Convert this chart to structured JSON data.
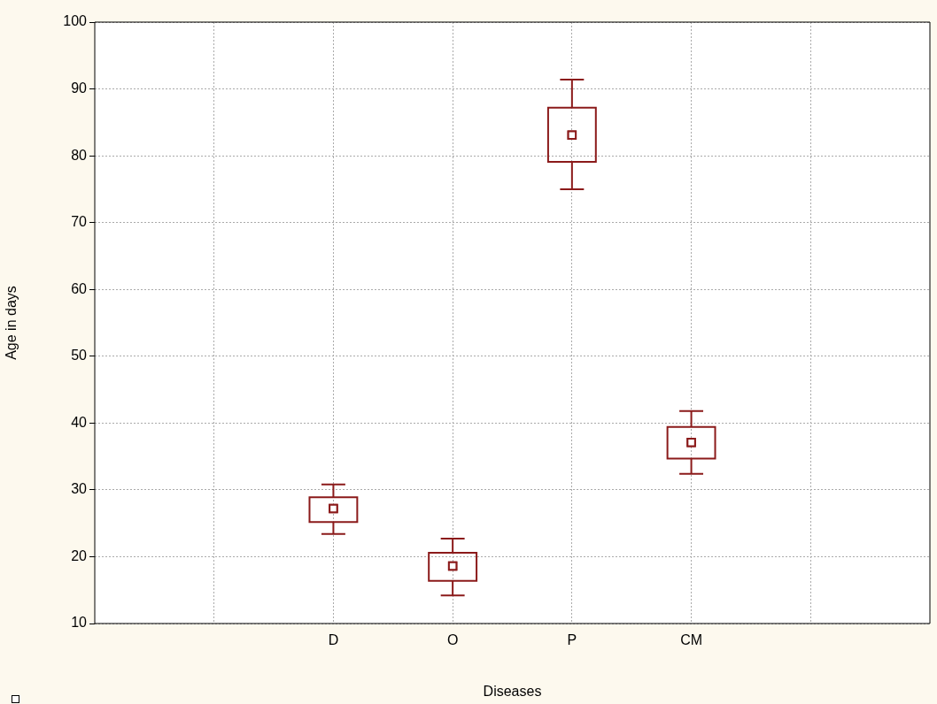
{
  "chart_data": {
    "type": "box",
    "xlabel": "Diseases",
    "ylabel": "Age in days",
    "categories": [
      null,
      "D",
      "O",
      "P",
      "CM",
      null
    ],
    "color": "#8b1a1a",
    "ylim": [
      10,
      100
    ],
    "yticks": [
      10,
      20,
      30,
      40,
      50,
      60,
      70,
      80,
      90,
      100
    ],
    "grid": true,
    "marker": "square",
    "boxes": [
      null,
      {
        "low": 23.4,
        "q1": 25.2,
        "median": 27.2,
        "q3": 28.9,
        "high": 30.8
      },
      {
        "low": 14.2,
        "q1": 16.4,
        "median": 18.6,
        "q3": 20.6,
        "high": 22.7
      },
      {
        "low": 75.0,
        "q1": 79.1,
        "median": 83.1,
        "q3": 87.2,
        "high": 91.4
      },
      {
        "low": 32.4,
        "q1": 34.7,
        "median": 37.1,
        "q3": 39.4,
        "high": 41.8
      },
      null
    ]
  }
}
